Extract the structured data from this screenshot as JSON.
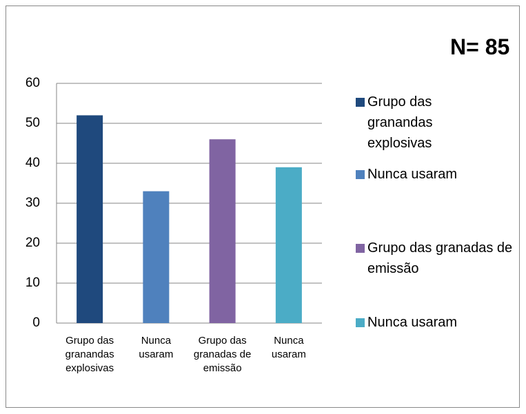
{
  "chart_data": {
    "type": "bar",
    "annotation": "N= 85",
    "categories": [
      "Grupo das granandas explosivas",
      "Nunca usaram",
      "Grupo das granadas de emissão",
      "Nunca usaram"
    ],
    "values": [
      52,
      33,
      46,
      39
    ],
    "colors": [
      "#1f497d",
      "#4f81bd",
      "#8064a2",
      "#4bacc6"
    ],
    "ylim": [
      0,
      60
    ],
    "yticks": [
      0,
      10,
      20,
      30,
      40,
      50,
      60
    ],
    "grid": true,
    "legend": "right"
  }
}
